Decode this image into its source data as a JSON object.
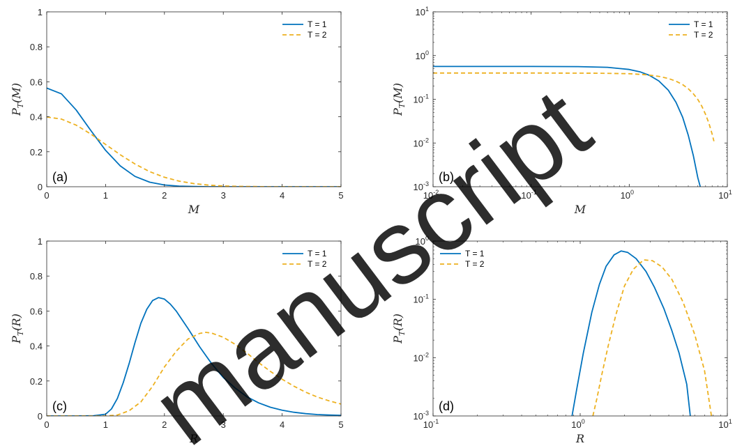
{
  "watermark": "manuscript",
  "colors": {
    "t1": "#0072BD",
    "t2": "#EDB120",
    "axis": "#262626"
  },
  "chart_data": [
    {
      "id": "a",
      "type": "line",
      "panel_label": "(a)",
      "xscale": "linear",
      "yscale": "linear",
      "xlabel": "M",
      "ylabel": {
        "main": "P",
        "sub": "T",
        "arg": "(M)"
      },
      "xlim": [
        0,
        5
      ],
      "ylim": [
        0,
        1
      ],
      "xticks": [
        0,
        1,
        2,
        3,
        4,
        5
      ],
      "xticklabels": [
        "0",
        "1",
        "2",
        "3",
        "4",
        "5"
      ],
      "yticks": [
        0,
        0.2,
        0.4,
        0.6,
        0.8,
        1
      ],
      "yticklabels": [
        "0",
        "0.2",
        "0.4",
        "0.6",
        "0.8",
        "1"
      ],
      "legend_position": "top-right",
      "series": [
        {
          "name": "T = 1",
          "style": "solid",
          "x": [
            0,
            0.25,
            0.5,
            0.75,
            1,
            1.25,
            1.5,
            1.75,
            2,
            2.25,
            2.5,
            2.75,
            3,
            3.25,
            3.5,
            3.75,
            4,
            4.25,
            4.5,
            4.75,
            5
          ],
          "y": [
            0.564,
            0.531,
            0.439,
            0.321,
            0.208,
            0.119,
            0.059,
            0.026,
            0.01,
            0.003,
            0.001,
            0,
            0,
            0,
            0,
            0,
            0,
            0,
            0,
            0,
            0
          ]
        },
        {
          "name": "T = 2",
          "style": "dashed",
          "x": [
            0,
            0.25,
            0.5,
            0.75,
            1,
            1.25,
            1.5,
            1.75,
            2,
            2.25,
            2.5,
            2.75,
            3,
            3.25,
            3.5,
            3.75,
            4,
            4.25,
            4.5,
            4.75,
            5
          ],
          "y": [
            0.399,
            0.387,
            0.352,
            0.301,
            0.242,
            0.183,
            0.13,
            0.086,
            0.054,
            0.032,
            0.018,
            0.009,
            0.004,
            0.002,
            0.001,
            0,
            0,
            0,
            0,
            0,
            0
          ]
        }
      ]
    },
    {
      "id": "b",
      "type": "line",
      "panel_label": "(b)",
      "xscale": "log",
      "yscale": "log",
      "xlabel": "M",
      "ylabel": {
        "main": "P",
        "sub": "T",
        "arg": "(M)"
      },
      "xlim": [
        0.01,
        10
      ],
      "ylim": [
        0.001,
        10
      ],
      "xticks": [
        0.01,
        0.1,
        1,
        10
      ],
      "xticklabels": [
        {
          "b": "10",
          "e": "-2"
        },
        {
          "b": "10",
          "e": "-1"
        },
        {
          "b": "10",
          "e": "0"
        },
        {
          "b": "10",
          "e": "1"
        }
      ],
      "yticks": [
        0.001,
        0.01,
        0.1,
        1,
        10
      ],
      "yticklabels": [
        {
          "b": "10",
          "e": "-3"
        },
        {
          "b": "10",
          "e": "-2"
        },
        {
          "b": "10",
          "e": "-1"
        },
        {
          "b": "10",
          "e": "0"
        },
        {
          "b": "10",
          "e": "1"
        }
      ],
      "legend_position": "top-right",
      "series": [
        {
          "name": "T = 1",
          "style": "solid",
          "x": [
            0.01,
            0.1,
            0.3,
            0.6,
            1,
            1.3,
            1.6,
            2,
            2.5,
            3,
            3.5,
            4,
            4.5,
            5,
            5.3
          ],
          "y": [
            0.564,
            0.564,
            0.56,
            0.539,
            0.481,
            0.422,
            0.355,
            0.263,
            0.162,
            0.085,
            0.039,
            0.015,
            0.0052,
            0.0016,
            0.001
          ]
        },
        {
          "name": "T = 2",
          "style": "dashed",
          "x": [
            0.01,
            0.1,
            0.5,
            1,
            1.5,
            2,
            2.5,
            3,
            3.5,
            4,
            4.5,
            5,
            5.5,
            6,
            6.5,
            7,
            7.3
          ],
          "y": [
            0.399,
            0.399,
            0.395,
            0.385,
            0.364,
            0.335,
            0.3,
            0.26,
            0.217,
            0.174,
            0.134,
            0.099,
            0.069,
            0.045,
            0.028,
            0.016,
            0.011
          ]
        }
      ]
    },
    {
      "id": "c",
      "type": "line",
      "panel_label": "(c)",
      "xscale": "linear",
      "yscale": "linear",
      "xlabel": "R",
      "ylabel": {
        "main": "P",
        "sub": "T",
        "arg": "(R)"
      },
      "xlim": [
        0,
        5
      ],
      "ylim": [
        0,
        1
      ],
      "xticks": [
        0,
        1,
        2,
        3,
        4,
        5
      ],
      "xticklabels": [
        "0",
        "1",
        "2",
        "3",
        "4",
        "5"
      ],
      "yticks": [
        0,
        0.2,
        0.4,
        0.6,
        0.8,
        1
      ],
      "yticklabels": [
        "0",
        "0.2",
        "0.4",
        "0.6",
        "0.8",
        "1"
      ],
      "legend_position": "top-right",
      "series": [
        {
          "name": "T = 1",
          "style": "solid",
          "x": [
            0,
            0.5,
            0.8,
            1,
            1.1,
            1.2,
            1.3,
            1.4,
            1.5,
            1.6,
            1.7,
            1.8,
            1.9,
            2,
            2.1,
            2.2,
            2.4,
            2.6,
            2.8,
            3,
            3.2,
            3.4,
            3.6,
            3.8,
            4,
            4.2,
            4.4,
            4.6,
            4.8,
            5
          ],
          "y": [
            0,
            0,
            0.001,
            0.01,
            0.04,
            0.1,
            0.19,
            0.3,
            0.42,
            0.53,
            0.61,
            0.66,
            0.677,
            0.668,
            0.64,
            0.6,
            0.5,
            0.395,
            0.3,
            0.22,
            0.16,
            0.11,
            0.075,
            0.05,
            0.033,
            0.021,
            0.013,
            0.008,
            0.005,
            0.003
          ]
        },
        {
          "name": "T = 2",
          "style": "dashed",
          "x": [
            0,
            1,
            1.2,
            1.4,
            1.6,
            1.8,
            2,
            2.2,
            2.4,
            2.6,
            2.7,
            2.8,
            3,
            3.2,
            3.4,
            3.6,
            3.8,
            4,
            4.2,
            4.4,
            4.6,
            4.8,
            5
          ],
          "y": [
            0,
            0,
            0.005,
            0.03,
            0.08,
            0.17,
            0.28,
            0.37,
            0.44,
            0.472,
            0.478,
            0.474,
            0.45,
            0.41,
            0.36,
            0.305,
            0.255,
            0.21,
            0.17,
            0.136,
            0.108,
            0.086,
            0.068
          ]
        }
      ]
    },
    {
      "id": "d",
      "type": "line",
      "panel_label": "(d)",
      "xscale": "log",
      "yscale": "log",
      "xlabel": "R",
      "ylabel": {
        "main": "P",
        "sub": "T",
        "arg": "(R)"
      },
      "xlim": [
        0.1,
        10
      ],
      "ylim": [
        0.001,
        1
      ],
      "xticks": [
        0.1,
        1,
        10
      ],
      "xticklabels": [
        {
          "b": "10",
          "e": "-1"
        },
        {
          "b": "10",
          "e": "0"
        },
        {
          "b": "10",
          "e": "1"
        }
      ],
      "yticks": [
        0.001,
        0.01,
        0.1,
        1
      ],
      "yticklabels": [
        {
          "b": "10",
          "e": "-3"
        },
        {
          "b": "10",
          "e": "-2"
        },
        {
          "b": "10",
          "e": "-1"
        },
        {
          "b": "10",
          "e": "0"
        }
      ],
      "legend_position": "top-left",
      "series": [
        {
          "name": "T = 1",
          "style": "solid",
          "x": [
            0.88,
            0.95,
            1.05,
            1.2,
            1.35,
            1.5,
            1.7,
            1.9,
            2.1,
            2.4,
            2.8,
            3.2,
            3.7,
            4.2,
            4.7,
            5.3,
            5.6
          ],
          "y": [
            0.001,
            0.003,
            0.012,
            0.06,
            0.18,
            0.37,
            0.58,
            0.676,
            0.64,
            0.5,
            0.3,
            0.16,
            0.07,
            0.029,
            0.012,
            0.0035,
            0.001
          ]
        },
        {
          "name": "T = 2",
          "style": "dashed",
          "x": [
            1.22,
            1.3,
            1.4,
            1.55,
            1.75,
            2,
            2.3,
            2.7,
            3.1,
            3.6,
            4.2,
            5,
            6,
            7,
            7.8
          ],
          "y": [
            0.001,
            0.002,
            0.005,
            0.016,
            0.055,
            0.17,
            0.33,
            0.475,
            0.46,
            0.36,
            0.22,
            0.09,
            0.025,
            0.006,
            0.001
          ]
        }
      ]
    }
  ]
}
